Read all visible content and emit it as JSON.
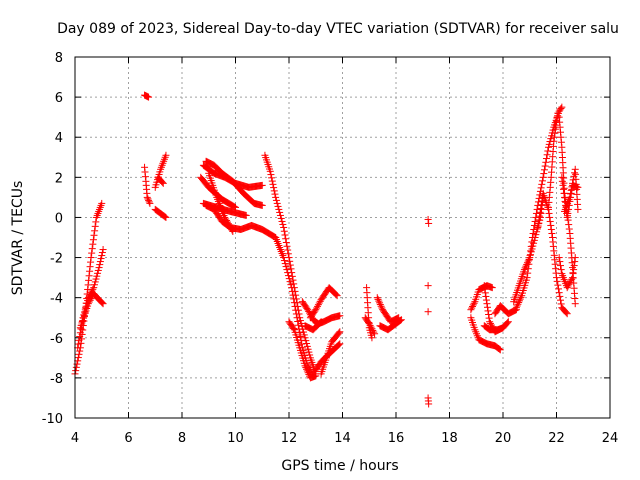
{
  "chart_data": {
    "type": "scatter",
    "title": "Day 089 of 2023, Sidereal Day-to-day VTEC variation (SDTVAR) for receiver salu",
    "xlabel": "GPS time / hours",
    "ylabel": "SDTVAR / TECUs",
    "xlim": [
      4,
      24
    ],
    "ylim": [
      -10,
      8
    ],
    "xticks": [
      4,
      6,
      8,
      10,
      12,
      14,
      16,
      18,
      20,
      22,
      24
    ],
    "yticks": [
      -10,
      -8,
      -6,
      -4,
      -2,
      0,
      2,
      4,
      6,
      8
    ],
    "grid": true,
    "marker": "+",
    "color": "#ff0000",
    "series": [
      {
        "name": "SDTVAR",
        "tracks": [
          [
            [
              4.0,
              -7.8
            ],
            [
              4.2,
              -6.5
            ],
            [
              4.4,
              -4.5
            ],
            [
              4.6,
              -2.0
            ],
            [
              4.8,
              0.0
            ],
            [
              5.0,
              0.7
            ]
          ],
          [
            [
              4.1,
              -6.5
            ],
            [
              4.3,
              -5.0
            ],
            [
              4.5,
              -4.0
            ],
            [
              4.7,
              -3.5
            ],
            [
              4.9,
              -2.5
            ],
            [
              5.05,
              -1.6
            ]
          ],
          [
            [
              4.2,
              -5.5
            ],
            [
              4.5,
              -4.3
            ],
            [
              4.7,
              -3.8
            ],
            [
              4.9,
              -4.1
            ],
            [
              5.05,
              -4.3
            ]
          ],
          [
            [
              6.6,
              6.1
            ],
            [
              6.75,
              6.0
            ]
          ],
          [
            [
              6.6,
              2.5
            ],
            [
              6.65,
              1.8
            ],
            [
              6.7,
              1.0
            ],
            [
              6.8,
              0.7
            ]
          ],
          [
            [
              7.0,
              1.5
            ],
            [
              7.2,
              2.4
            ],
            [
              7.4,
              3.1
            ]
          ],
          [
            [
              7.0,
              0.4
            ],
            [
              7.2,
              0.2
            ],
            [
              7.4,
              0.0
            ]
          ],
          [
            [
              7.1,
              2.0
            ],
            [
              7.3,
              1.7
            ]
          ],
          [
            [
              8.7,
              2.0
            ],
            [
              9.0,
              1.5
            ],
            [
              9.5,
              0.9
            ],
            [
              10.0,
              0.5
            ]
          ],
          [
            [
              8.8,
              2.6
            ],
            [
              9.2,
              2.2
            ],
            [
              9.6,
              2.0
            ],
            [
              10.0,
              1.7
            ],
            [
              10.5,
              1.5
            ],
            [
              11.0,
              1.6
            ]
          ],
          [
            [
              8.8,
              0.7
            ],
            [
              9.3,
              0.5
            ],
            [
              9.8,
              0.3
            ],
            [
              10.4,
              0.1
            ]
          ],
          [
            [
              8.9,
              2.8
            ],
            [
              9.2,
              2.6
            ],
            [
              9.5,
              2.2
            ],
            [
              9.9,
              1.8
            ],
            [
              10.3,
              1.2
            ],
            [
              10.7,
              0.7
            ],
            [
              11.0,
              0.6
            ]
          ],
          [
            [
              9.0,
              2.2
            ],
            [
              9.3,
              1.0
            ],
            [
              9.6,
              0.0
            ],
            [
              9.9,
              -0.7
            ]
          ],
          [
            [
              8.9,
              0.6
            ],
            [
              9.2,
              0.4
            ],
            [
              9.5,
              -0.2
            ],
            [
              9.8,
              -0.5
            ],
            [
              10.2,
              -0.6
            ],
            [
              10.6,
              -0.4
            ],
            [
              11.0,
              -0.6
            ],
            [
              11.5,
              -1.0
            ]
          ],
          [
            [
              11.1,
              3.1
            ],
            [
              11.3,
              2.3
            ],
            [
              11.5,
              1.0
            ],
            [
              11.8,
              -0.5
            ],
            [
              12.0,
              -2.0
            ],
            [
              12.2,
              -3.5
            ],
            [
              12.4,
              -5.0
            ],
            [
              12.6,
              -6.0
            ],
            [
              12.8,
              -7.0
            ],
            [
              13.0,
              -7.8
            ]
          ],
          [
            [
              11.5,
              -1.0
            ],
            [
              11.8,
              -2.0
            ],
            [
              12.1,
              -3.5
            ],
            [
              12.3,
              -5.0
            ],
            [
              12.5,
              -6.5
            ],
            [
              12.7,
              -7.4
            ],
            [
              12.9,
              -7.9
            ]
          ],
          [
            [
              12.0,
              -5.2
            ],
            [
              12.2,
              -5.6
            ],
            [
              12.4,
              -6.5
            ],
            [
              12.6,
              -7.4
            ],
            [
              12.8,
              -8.0
            ],
            [
              13.0,
              -7.9
            ]
          ],
          [
            [
              12.8,
              -5.0
            ],
            [
              13.0,
              -4.6
            ],
            [
              13.2,
              -4.1
            ],
            [
              13.5,
              -3.5
            ],
            [
              13.8,
              -3.9
            ]
          ],
          [
            [
              12.5,
              -4.2
            ],
            [
              12.7,
              -4.6
            ],
            [
              12.9,
              -5.1
            ],
            [
              13.1,
              -5.3
            ],
            [
              13.3,
              -5.2
            ],
            [
              13.6,
              -5.0
            ],
            [
              13.9,
              -4.9
            ]
          ],
          [
            [
              12.6,
              -5.4
            ],
            [
              12.9,
              -5.6
            ],
            [
              13.2,
              -5.2
            ]
          ],
          [
            [
              13.0,
              -7.6
            ],
            [
              13.2,
              -7.2
            ],
            [
              13.5,
              -6.8
            ],
            [
              13.9,
              -6.3
            ]
          ],
          [
            [
              13.2,
              -7.8
            ],
            [
              13.4,
              -7.0
            ],
            [
              13.6,
              -6.2
            ],
            [
              13.9,
              -5.7
            ]
          ],
          [
            [
              14.9,
              -3.5
            ],
            [
              14.95,
              -4.5
            ],
            [
              15.0,
              -5.5
            ],
            [
              15.1,
              -6.0
            ]
          ],
          [
            [
              14.85,
              -5.0
            ],
            [
              15.0,
              -5.3
            ],
            [
              15.2,
              -5.8
            ]
          ],
          [
            [
              15.3,
              -4.0
            ],
            [
              15.5,
              -4.6
            ],
            [
              15.8,
              -5.2
            ],
            [
              16.1,
              -5.0
            ]
          ],
          [
            [
              15.4,
              -5.4
            ],
            [
              15.7,
              -5.6
            ],
            [
              16.0,
              -5.3
            ],
            [
              16.2,
              -5.1
            ]
          ],
          [
            [
              17.2,
              -0.1
            ],
            [
              17.22,
              -0.3
            ]
          ],
          [
            [
              17.2,
              -3.4
            ]
          ],
          [
            [
              17.2,
              -4.7
            ]
          ],
          [
            [
              17.2,
              -9.0
            ],
            [
              17.22,
              -9.3
            ]
          ],
          [
            [
              18.8,
              -4.6
            ],
            [
              18.95,
              -4.2
            ],
            [
              19.1,
              -3.6
            ],
            [
              19.4,
              -3.4
            ],
            [
              19.6,
              -3.5
            ]
          ],
          [
            [
              18.8,
              -5.0
            ],
            [
              18.95,
              -5.6
            ],
            [
              19.1,
              -6.1
            ],
            [
              19.4,
              -6.3
            ],
            [
              19.7,
              -6.4
            ],
            [
              19.9,
              -6.6
            ]
          ],
          [
            [
              19.3,
              -3.4
            ],
            [
              19.4,
              -4.3
            ],
            [
              19.5,
              -5.2
            ],
            [
              19.7,
              -5.7
            ],
            [
              20.0,
              -5.5
            ],
            [
              20.2,
              -5.2
            ]
          ],
          [
            [
              19.3,
              -5.4
            ],
            [
              19.5,
              -5.6
            ],
            [
              19.8,
              -5.6
            ],
            [
              20.0,
              -5.5
            ]
          ],
          [
            [
              19.7,
              -4.8
            ],
            [
              19.9,
              -4.4
            ],
            [
              20.2,
              -4.8
            ],
            [
              20.5,
              -4.6
            ]
          ],
          [
            [
              20.4,
              -4.2
            ],
            [
              20.6,
              -3.4
            ],
            [
              20.8,
              -2.6
            ],
            [
              21.0,
              -2.0
            ],
            [
              21.2,
              -1.0
            ],
            [
              21.4,
              0.0
            ],
            [
              21.5,
              1.0
            ]
          ],
          [
            [
              20.5,
              -4.5
            ],
            [
              20.7,
              -3.9
            ],
            [
              20.9,
              -3.0
            ],
            [
              21.1,
              -1.0
            ],
            [
              21.3,
              0.6
            ],
            [
              21.5,
              2.0
            ],
            [
              21.7,
              3.5
            ],
            [
              21.9,
              4.5
            ],
            [
              22.1,
              5.3
            ],
            [
              22.2,
              5.5
            ]
          ],
          [
            [
              21.3,
              -0.5
            ],
            [
              21.5,
              1.2
            ],
            [
              21.7,
              0.4
            ],
            [
              21.85,
              -1.0
            ],
            [
              22.0,
              -3.0
            ],
            [
              22.2,
              -4.5
            ],
            [
              22.4,
              -4.8
            ]
          ],
          [
            [
              21.7,
              0.5
            ],
            [
              21.8,
              2.0
            ],
            [
              21.9,
              3.8
            ],
            [
              22.0,
              4.8
            ],
            [
              22.05,
              5.2
            ]
          ],
          [
            [
              22.1,
              5.0
            ],
            [
              22.2,
              3.5
            ],
            [
              22.3,
              1.2
            ],
            [
              22.5,
              -0.8
            ],
            [
              22.6,
              -2.5
            ],
            [
              22.7,
              -4.3
            ]
          ],
          [
            [
              22.2,
              2.0
            ],
            [
              22.3,
              1.0
            ],
            [
              22.4,
              0.0
            ],
            [
              22.5,
              0.8
            ],
            [
              22.6,
              1.6
            ],
            [
              22.8,
              1.5
            ]
          ],
          [
            [
              22.1,
              -2.0
            ],
            [
              22.2,
              -2.8
            ],
            [
              22.4,
              -3.5
            ],
            [
              22.6,
              -3.0
            ],
            [
              22.7,
              -2.0
            ]
          ],
          [
            [
              22.3,
              0.3
            ],
            [
              22.5,
              1.0
            ],
            [
              22.7,
              2.4
            ],
            [
              22.8,
              0.4
            ]
          ]
        ]
      }
    ]
  }
}
